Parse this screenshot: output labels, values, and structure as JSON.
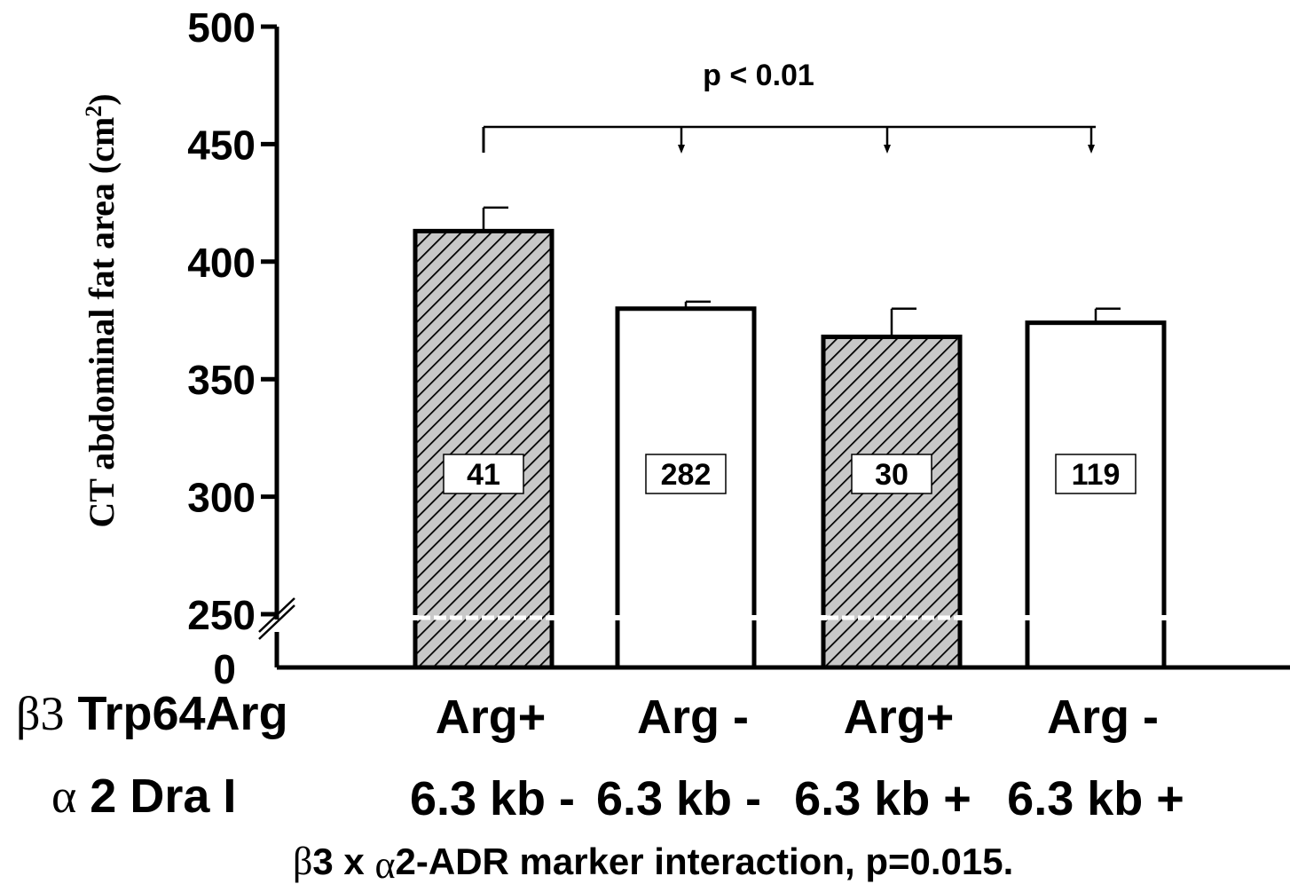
{
  "chart_data": {
    "type": "bar",
    "ylabel": "CT abdominal fat area (cm",
    "ylabel_superscript": "2",
    "ylabel_close": ")",
    "y_axis_break": true,
    "ylim": [
      250,
      500
    ],
    "yticks": [
      "500",
      "450",
      "400",
      "350",
      "300",
      "250"
    ],
    "y_zero_label": "0",
    "categories": [
      {
        "beta3": "Arg+",
        "alpha2": "6.3 kb -",
        "pattern": "hatched"
      },
      {
        "beta3": "Arg -",
        "alpha2": "6.3 kb -",
        "pattern": "open"
      },
      {
        "beta3": "Arg+",
        "alpha2": "6.3 kb +",
        "pattern": "hatched"
      },
      {
        "beta3": "Arg -",
        "alpha2": "6.3 kb +",
        "pattern": "open"
      }
    ],
    "values": [
      413,
      380,
      368,
      374
    ],
    "error_upper": [
      423,
      383,
      380,
      380
    ],
    "n_labels": [
      "41",
      "282",
      "30",
      "119"
    ],
    "row_labels": {
      "beta3": {
        "symbol": "β3",
        "text": " Trp64Arg"
      },
      "alpha2": {
        "symbol": "α",
        "text": " 2 Dra I"
      }
    },
    "significance": {
      "text": "p < 0.01"
    },
    "footnote": {
      "beta_symbol": "β",
      "part1": "3 x ",
      "alpha_symbol": "α",
      "part2": "2-ADR marker interaction, p=0.015."
    },
    "colors": {
      "hatched_fill": "#c8c8c8",
      "open_fill": "#ffffff",
      "stroke": "#000000"
    }
  }
}
